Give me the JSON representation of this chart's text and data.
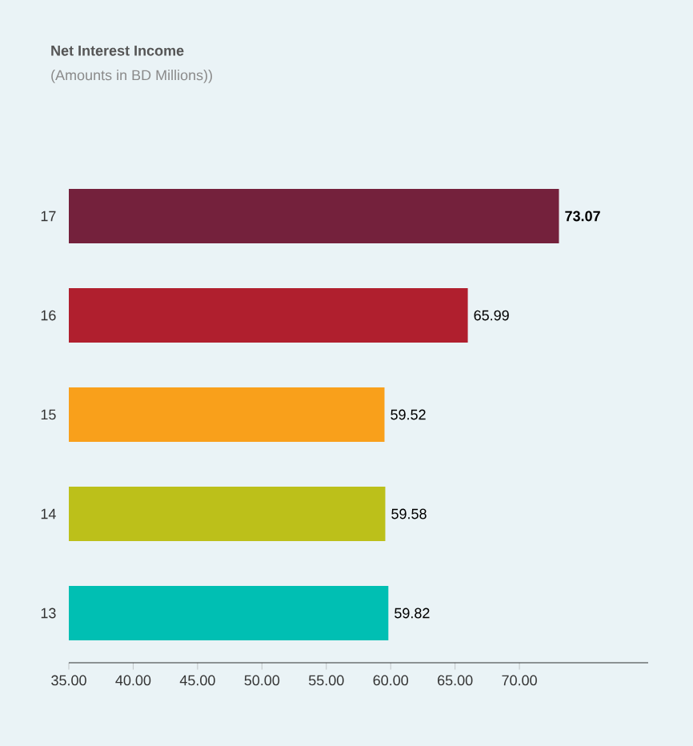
{
  "chart_data": {
    "type": "bar",
    "orientation": "horizontal",
    "title": "Net Interest Income",
    "subtitle": "(Amounts in BD Millions))",
    "categories": [
      "17",
      "16",
      "15",
      "14",
      "13"
    ],
    "values": [
      73.07,
      65.99,
      59.52,
      59.58,
      59.82
    ],
    "colors": [
      "#74213c",
      "#b01f2e",
      "#f9a01b",
      "#bcc01a",
      "#00bfb3"
    ],
    "value_labels": [
      "**73.07**",
      "65.99",
      "59.52",
      "59.58",
      "59.82"
    ],
    "xlim": [
      35,
      80
    ],
    "xticks": [
      {
        "value": 35,
        "label": "35.00"
      },
      {
        "value": 40,
        "label": "40.00"
      },
      {
        "value": 45,
        "label": "45.00"
      },
      {
        "value": 50,
        "label": "50.00"
      },
      {
        "value": 55,
        "label": "55.00"
      },
      {
        "value": 60,
        "label": "60.00"
      },
      {
        "value": 65,
        "label": "65.00"
      },
      {
        "value": 70,
        "label": "70.00"
      }
    ]
  }
}
